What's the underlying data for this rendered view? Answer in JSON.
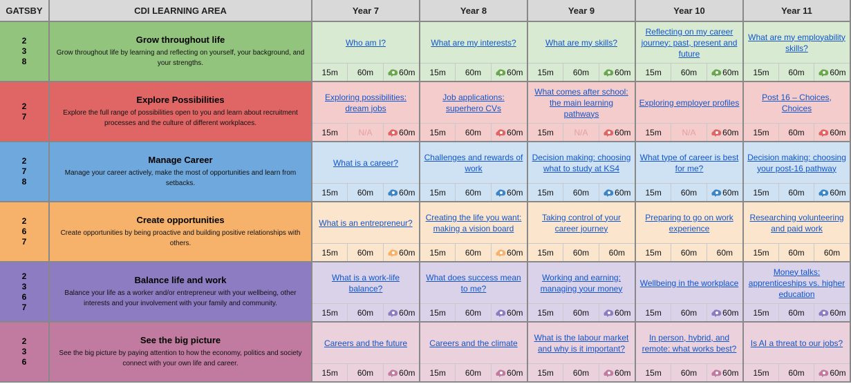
{
  "headers": [
    "GATSBY",
    "CDI LEARNING AREA",
    "Year 7",
    "Year 8",
    "Year 9",
    "Year 10",
    "Year 11"
  ],
  "rows": [
    {
      "gatsby": [
        "2",
        "3",
        "8"
      ],
      "title": "Grow throughout life",
      "description": "Grow throughout life by learning and reflecting on yourself, your background, and your strengths.",
      "color": "#93c47d",
      "light": "#d9ead3",
      "icon_color": "#6aa84f",
      "cells": [
        {
          "topic": "Who am I?",
          "times": [
            "15m",
            "60m",
            "60m"
          ],
          "icon": true
        },
        {
          "topic": "What are my interests?",
          "times": [
            "15m",
            "60m",
            "60m"
          ],
          "icon": true
        },
        {
          "topic": "What are my skills?",
          "times": [
            "15m",
            "60m",
            "60m"
          ],
          "icon": true
        },
        {
          "topic": "Reflecting on my career journey: past, present and future",
          "times": [
            "15m",
            "60m",
            "60m"
          ],
          "icon": true
        },
        {
          "topic": "What are my employability skills?",
          "times": [
            "15m",
            "60m",
            "60m"
          ],
          "icon": true
        }
      ]
    },
    {
      "gatsby": [
        "2",
        "7"
      ],
      "title": "Explore Possibilities",
      "description": "Explore the full range of possibilities open to you and learn about recruitment processes and the culture of different workplaces.",
      "color": "#e06666",
      "light": "#f4cccc",
      "icon_color": "#e06666",
      "cells": [
        {
          "topic": "Exploring possibilities: dream jobs",
          "times": [
            "15m",
            "N/A",
            "60m"
          ],
          "icon": true
        },
        {
          "topic": "Job applications: superhero CVs",
          "times": [
            "15m",
            "60m",
            "60m"
          ],
          "icon": true
        },
        {
          "topic": "What comes after school: the main learning pathways",
          "times": [
            "15m",
            "N/A",
            "60m"
          ],
          "icon": true
        },
        {
          "topic": "Exploring employer profiles",
          "times": [
            "15m",
            "N/A",
            "60m"
          ],
          "icon": true
        },
        {
          "topic": "Post 16 – Choices, Choices",
          "times": [
            "15m",
            "60m",
            "60m"
          ],
          "icon": true
        }
      ]
    },
    {
      "gatsby": [
        "2",
        "7",
        "8"
      ],
      "title": "Manage Career",
      "description": "Manage your career actively, make the most of opportunities and learn from setbacks.",
      "color": "#6fa8dc",
      "light": "#cfe2f3",
      "icon_color": "#3d85c6",
      "cells": [
        {
          "topic": "What is a career?",
          "times": [
            "15m",
            "60m",
            "60m"
          ],
          "icon": true
        },
        {
          "topic": "Challenges and rewards of work",
          "times": [
            "15m",
            "60m",
            "60m"
          ],
          "icon": true
        },
        {
          "topic": "Decision making: choosing what to study at KS4",
          "times": [
            "15m",
            "60m",
            "60m"
          ],
          "icon": true
        },
        {
          "topic": "What type of career is best for me?",
          "times": [
            "15m",
            "60m",
            "60m"
          ],
          "icon": true
        },
        {
          "topic": "Decision making: choosing your post-16 pathway",
          "times": [
            "15m",
            "60m",
            "60m"
          ],
          "icon": true
        }
      ]
    },
    {
      "gatsby": [
        "2",
        "6",
        "7"
      ],
      "title": "Create opportunities",
      "description": "Create opportunities by being proactive and building positive relationships with others.",
      "color": "#f6b26b",
      "light": "#fce5cd",
      "icon_color": "#f6b26b",
      "cells": [
        {
          "topic": "What is an entrepreneur?",
          "times": [
            "15m",
            "60m",
            "60m"
          ],
          "icon": true
        },
        {
          "topic": "Creating the life you want: making a vision board",
          "times": [
            "15m",
            "60m",
            "60m"
          ],
          "icon": true
        },
        {
          "topic": "Taking control of your career journey",
          "times": [
            "15m",
            "60m",
            "60m"
          ],
          "icon": false
        },
        {
          "topic": "Preparing to go on work experience",
          "times": [
            "15m",
            "60m",
            "60m"
          ],
          "icon": false
        },
        {
          "topic": "Researching volunteering and paid work",
          "times": [
            "15m",
            "60m",
            "60m"
          ],
          "icon": false
        }
      ]
    },
    {
      "gatsby": [
        "2",
        "3",
        "6",
        "7"
      ],
      "title": "Balance life and work",
      "description": "Balance your life as a worker and/or entrepreneur with your wellbeing, other interests and your involvement with your family and community.",
      "color": "#8e7cc3",
      "light": "#d9d2e9",
      "icon_color": "#8e7cc3",
      "cells": [
        {
          "topic": "What is a work-life balance?",
          "times": [
            "15m",
            "60m",
            "60m"
          ],
          "icon": true
        },
        {
          "topic": "What does success mean to me?",
          "times": [
            "15m",
            "60m",
            "60m"
          ],
          "icon": true
        },
        {
          "topic": "Working and earning: managing your money",
          "times": [
            "15m",
            "60m",
            "60m"
          ],
          "icon": true
        },
        {
          "topic": "Wellbeing in the workplace",
          "times": [
            "15m",
            "60m",
            "60m"
          ],
          "icon": true
        },
        {
          "topic": "Money talks: apprenticeships vs. higher education",
          "times": [
            "15m",
            "60m",
            "60m"
          ],
          "icon": true
        }
      ]
    },
    {
      "gatsby": [
        "2",
        "3",
        "6"
      ],
      "title": "See the big picture",
      "description": "See the big picture by paying attention to how the economy, politics and society connect with your own life and career.",
      "color": "#c27ba0",
      "light": "#ead1dc",
      "icon_color": "#c27ba0",
      "cells": [
        {
          "topic": "Careers and the future",
          "times": [
            "15m",
            "60m",
            "60m"
          ],
          "icon": true
        },
        {
          "topic": "Careers and the climate",
          "times": [
            "15m",
            "60m",
            "60m"
          ],
          "icon": true
        },
        {
          "topic": "What is the labour market and why is it important?",
          "times": [
            "15m",
            "60m",
            "60m"
          ],
          "icon": true
        },
        {
          "topic": "In person, hybrid, and remote: what works best?",
          "times": [
            "15m",
            "60m",
            "60m"
          ],
          "icon": true
        },
        {
          "topic": "Is AI a threat to our jobs?",
          "times": [
            "15m",
            "60m",
            "60m"
          ],
          "icon": true
        }
      ]
    }
  ]
}
